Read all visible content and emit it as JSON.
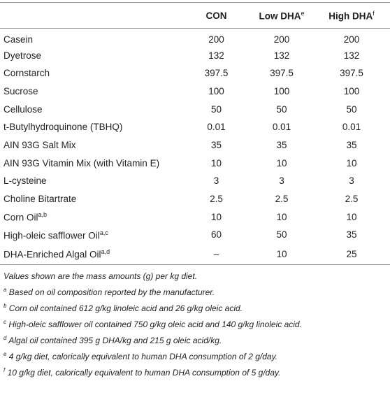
{
  "table": {
    "header": [
      {
        "text": "CON"
      },
      {
        "text": "Low DHA",
        "sup": "e"
      },
      {
        "text": "High DHA",
        "sup": "f"
      }
    ],
    "rows": [
      {
        "label": "Casein",
        "values": [
          "200",
          "200",
          "200"
        ]
      },
      {
        "label": "Dyetrose",
        "values": [
          "132",
          "132",
          "132"
        ]
      },
      {
        "label": "Cornstarch",
        "values": [
          "397.5",
          "397.5",
          "397.5"
        ]
      },
      {
        "label": "Sucrose",
        "values": [
          "100",
          "100",
          "100"
        ]
      },
      {
        "label": "Cellulose",
        "values": [
          "50",
          "50",
          "50"
        ]
      },
      {
        "label": "t-Butylhydroquinone (TBHQ)",
        "values": [
          "0.01",
          "0.01",
          "0.01"
        ]
      },
      {
        "label": "AIN 93G Salt Mix",
        "values": [
          "35",
          "35",
          "35"
        ]
      },
      {
        "label": "AIN 93G Vitamin Mix (with Vitamin E)",
        "values": [
          "10",
          "10",
          "10"
        ]
      },
      {
        "label": "L-cysteine",
        "values": [
          "3",
          "3",
          "3"
        ]
      },
      {
        "label": "Choline Bitartrate",
        "values": [
          "2.5",
          "2.5",
          "2.5"
        ]
      },
      {
        "label": "Corn Oil",
        "sup": "a,b",
        "values": [
          "10",
          "10",
          "10"
        ]
      },
      {
        "label": "High-oleic safflower Oil",
        "sup": "a,c",
        "values": [
          "60",
          "50",
          "35"
        ]
      },
      {
        "label": "DHA-Enriched Algal Oil",
        "sup": "a,d",
        "values": [
          "–",
          "10",
          "25"
        ]
      }
    ]
  },
  "notes": {
    "intro": "Values shown are the mass amounts (g) per kg diet.",
    "items": [
      {
        "mark": "a",
        "text": "Based on oil composition reported by the manufacturer."
      },
      {
        "mark": "b",
        "text": "Corn oil contained 612 g/kg linoleic acid and 26 g/kg oleic acid."
      },
      {
        "mark": "c",
        "text": "High-oleic safflower oil contained 750 g/kg oleic acid and 140 g/kg linoleic acid."
      },
      {
        "mark": "d",
        "text": "Algal oil contained 395 g DHA/kg and 215 g oleic acid/kg."
      },
      {
        "mark": "e",
        "text": "4 g/kg diet, calorically equivalent to human DHA consumption of 2 g/day."
      },
      {
        "mark": "f",
        "text": "10 g/kg diet, calorically equivalent to human DHA consumption of 5 g/day."
      }
    ]
  }
}
